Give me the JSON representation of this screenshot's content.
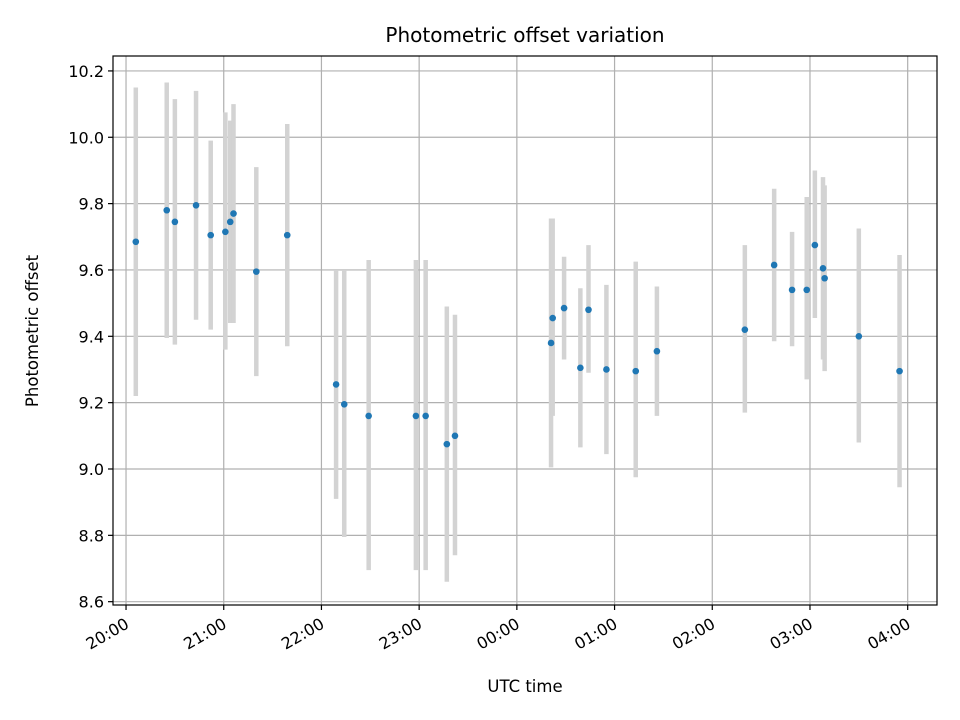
{
  "chart_data": {
    "type": "scatter",
    "title": "Photometric offset variation",
    "xlabel": "UTC time",
    "ylabel": "Photometric offset",
    "x_axis": {
      "kind": "time",
      "ticks": [
        {
          "t": "20:00",
          "label": "20:00"
        },
        {
          "t": "21:00",
          "label": "21:00"
        },
        {
          "t": "22:00",
          "label": "22:00"
        },
        {
          "t": "23:00",
          "label": "23:00"
        },
        {
          "t": "00:00",
          "label": "00:00"
        },
        {
          "t": "01:00",
          "label": "01:00"
        },
        {
          "t": "02:00",
          "label": "02:00"
        },
        {
          "t": "03:00",
          "label": "03:00"
        },
        {
          "t": "04:00",
          "label": "04:00"
        }
      ],
      "range": [
        "19:52",
        "04:18"
      ]
    },
    "y_axis": {
      "ticks": [
        "8.6",
        "8.8",
        "9.0",
        "9.2",
        "9.4",
        "9.6",
        "9.8",
        "10.0",
        "10.2"
      ],
      "range": [
        8.59,
        10.245
      ]
    },
    "grid": true,
    "colors": {
      "point": "#1f77b4",
      "errorbar": "#d3d3d3",
      "grid": "#b0b0b0"
    },
    "points": [
      {
        "t": "20:06",
        "y": 9.685,
        "lo": 9.22,
        "hi": 10.15
      },
      {
        "t": "20:25",
        "y": 9.78,
        "lo": 9.395,
        "hi": 10.165
      },
      {
        "t": "20:30",
        "y": 9.745,
        "lo": 9.375,
        "hi": 10.115
      },
      {
        "t": "20:43",
        "y": 9.795,
        "lo": 9.45,
        "hi": 10.14
      },
      {
        "t": "20:52",
        "y": 9.705,
        "lo": 9.42,
        "hi": 9.99
      },
      {
        "t": "21:01",
        "y": 9.715,
        "lo": 9.36,
        "hi": 10.075
      },
      {
        "t": "21:04",
        "y": 9.745,
        "lo": 9.44,
        "hi": 10.05
      },
      {
        "t": "21:06",
        "y": 9.77,
        "lo": 9.44,
        "hi": 10.1
      },
      {
        "t": "21:20",
        "y": 9.595,
        "lo": 9.28,
        "hi": 9.91
      },
      {
        "t": "21:39",
        "y": 9.705,
        "lo": 9.37,
        "hi": 10.04
      },
      {
        "t": "22:09",
        "y": 9.255,
        "lo": 8.91,
        "hi": 9.6
      },
      {
        "t": "22:14",
        "y": 9.195,
        "lo": 8.795,
        "hi": 9.6
      },
      {
        "t": "22:29",
        "y": 9.16,
        "lo": 8.695,
        "hi": 9.63
      },
      {
        "t": "22:58",
        "y": 9.16,
        "lo": 8.695,
        "hi": 9.63
      },
      {
        "t": "23:04",
        "y": 9.16,
        "lo": 8.695,
        "hi": 9.63
      },
      {
        "t": "23:17",
        "y": 9.075,
        "lo": 8.66,
        "hi": 9.49
      },
      {
        "t": "23:22",
        "y": 9.1,
        "lo": 8.74,
        "hi": 9.465
      },
      {
        "t": "00:21",
        "y": 9.38,
        "lo": 9.005,
        "hi": 9.755
      },
      {
        "t": "00:22",
        "y": 9.455,
        "lo": 9.16,
        "hi": 9.755
      },
      {
        "t": "00:29",
        "y": 9.485,
        "lo": 9.33,
        "hi": 9.64
      },
      {
        "t": "00:39",
        "y": 9.305,
        "lo": 9.065,
        "hi": 9.545
      },
      {
        "t": "00:44",
        "y": 9.48,
        "lo": 9.29,
        "hi": 9.675
      },
      {
        "t": "00:55",
        "y": 9.3,
        "lo": 9.045,
        "hi": 9.555
      },
      {
        "t": "01:13",
        "y": 9.295,
        "lo": 8.975,
        "hi": 9.625
      },
      {
        "t": "01:26",
        "y": 9.355,
        "lo": 9.16,
        "hi": 9.55
      },
      {
        "t": "02:20",
        "y": 9.42,
        "lo": 9.17,
        "hi": 9.675
      },
      {
        "t": "02:38",
        "y": 9.615,
        "lo": 9.385,
        "hi": 9.845
      },
      {
        "t": "02:49",
        "y": 9.54,
        "lo": 9.37,
        "hi": 9.715
      },
      {
        "t": "02:58",
        "y": 9.54,
        "lo": 9.27,
        "hi": 9.82
      },
      {
        "t": "03:03",
        "y": 9.675,
        "lo": 9.455,
        "hi": 9.9
      },
      {
        "t": "03:08",
        "y": 9.605,
        "lo": 9.33,
        "hi": 9.88
      },
      {
        "t": "03:09",
        "y": 9.575,
        "lo": 9.295,
        "hi": 9.855
      },
      {
        "t": "03:30",
        "y": 9.4,
        "lo": 9.08,
        "hi": 9.725
      },
      {
        "t": "03:55",
        "y": 9.295,
        "lo": 8.945,
        "hi": 9.645
      }
    ]
  }
}
